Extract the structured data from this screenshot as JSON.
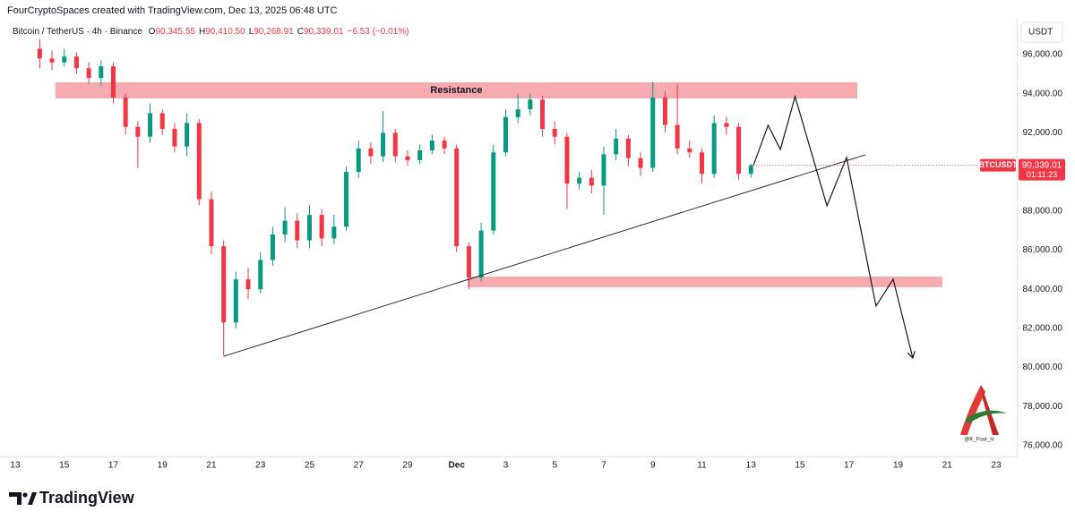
{
  "chart_data": {
    "type": "candlestick",
    "title": "FourCryptoSpaces created with TradingView.com, Dec 13, 2025 06:48 UTC",
    "legend": {
      "symbol": "Bitcoin / TetherUS · 4h · Binance",
      "ohlc": [
        {
          "key": "O",
          "value": "90,345.55"
        },
        {
          "key": "H",
          "value": "90,410.50"
        },
        {
          "key": "L",
          "value": "90,268.91"
        },
        {
          "key": "C",
          "value": "90,339.01"
        }
      ],
      "change": "−6.53 (−0.01%)"
    },
    "currency": "USDT",
    "price_tag": {
      "symbol": "BTCUSDT",
      "price": "90,339.01",
      "countdown": "01:11:23"
    },
    "brand": "TradingView",
    "watermark": "@K_Four_iv",
    "up_color": "#089981",
    "down_color": "#f23645",
    "candles": {
      "x": [
        1,
        1.5,
        2,
        2.5,
        3,
        3.5,
        4,
        4.5,
        5,
        5.5,
        6,
        6.5,
        7,
        7.5,
        8,
        8.5,
        9,
        9.5,
        10,
        10.5,
        11,
        11.5,
        12,
        12.5,
        13,
        13.5,
        14,
        14.5,
        15,
        15.5,
        16,
        16.5,
        17,
        17.5,
        18,
        18.5,
        19,
        19.5,
        20,
        20.5,
        21,
        21.5,
        22,
        22.5,
        23,
        23.5,
        24,
        24.5,
        25,
        25.5,
        26,
        26.5,
        27,
        27.5,
        28,
        28.5,
        29,
        29.5,
        30
      ],
      "open": [
        96300,
        95800,
        95600,
        95900,
        95300,
        94800,
        95400,
        93800,
        92300,
        91800,
        93000,
        92200,
        91300,
        92500,
        88600,
        86200,
        82300,
        84500,
        84000,
        85500,
        86800,
        87500,
        86500,
        87800,
        86600,
        87200,
        90000,
        91200,
        90800,
        92000,
        90800,
        90600,
        91100,
        91600,
        91200,
        86200,
        84600,
        87000,
        91000,
        92800,
        93200,
        93700,
        92200,
        91800,
        89400,
        89700,
        89300,
        90900,
        91700,
        90700,
        90200,
        93800,
        92400,
        91200,
        91000,
        89900,
        92500,
        92300,
        89900
      ],
      "high": [
        96800,
        96200,
        96300,
        96100,
        95600,
        95700,
        95600,
        94000,
        92600,
        93500,
        93200,
        92500,
        93000,
        92700,
        89000,
        86500,
        84900,
        85100,
        85900,
        87200,
        88200,
        87900,
        88300,
        88100,
        87800,
        90300,
        91600,
        91500,
        93100,
        92200,
        91100,
        91400,
        91900,
        91800,
        91400,
        86400,
        87400,
        91400,
        93200,
        94000,
        94000,
        93900,
        92600,
        92000,
        90000,
        90100,
        91300,
        92200,
        91900,
        91000,
        94600,
        94100,
        94500,
        91600,
        91200,
        92900,
        92800,
        92500,
        90410.5
      ],
      "low": [
        95300,
        95200,
        95400,
        95000,
        94500,
        94400,
        93500,
        91900,
        90200,
        91500,
        91900,
        91000,
        90800,
        88300,
        85800,
        80600,
        82000,
        83500,
        83800,
        85200,
        86400,
        86100,
        86100,
        86200,
        86300,
        87000,
        89700,
        90400,
        90500,
        90500,
        90300,
        90400,
        90900,
        90900,
        85900,
        84000,
        84400,
        86800,
        90800,
        92500,
        92900,
        91800,
        91400,
        88100,
        89100,
        88900,
        87800,
        90600,
        90300,
        89800,
        90000,
        92000,
        90900,
        90700,
        89400,
        89700,
        91900,
        89600,
        89700
      ],
      "close": [
        95800,
        95600,
        95900,
        95300,
        94800,
        95400,
        93800,
        92300,
        91800,
        93000,
        92200,
        91300,
        92500,
        88600,
        86200,
        82300,
        84500,
        84000,
        85500,
        86800,
        87500,
        86500,
        87800,
        86600,
        87200,
        90000,
        91200,
        90800,
        92000,
        90800,
        90600,
        91100,
        91600,
        91200,
        86200,
        84600,
        87000,
        91000,
        92800,
        93200,
        93700,
        92200,
        91800,
        89400,
        89700,
        89300,
        90900,
        91700,
        90700,
        90200,
        93800,
        92400,
        91200,
        91000,
        89900,
        92500,
        92300,
        89900,
        90339.01
      ]
    },
    "zones": [
      {
        "label": "Resistance",
        "color": "#f7a1a8",
        "x": [
          1.64,
          34.34
        ],
        "y": [
          93757,
          94581
        ]
      },
      {
        "color": "#f7a1a8",
        "x": [
          18.45,
          37.8
        ],
        "y": [
          84100,
          84650
        ]
      }
    ],
    "trendline": {
      "x": [
        8.51,
        34.67
      ],
      "y": [
        80577,
        90874
      ]
    },
    "projection": {
      "x": [
        30.1,
        30.7,
        31.2,
        31.8,
        33.1,
        33.9,
        35.1,
        35.8,
        36.6
      ],
      "y": [
        90325,
        92384,
        91150,
        93850,
        88266,
        90737,
        83140,
        84513,
        80486
      ]
    },
    "xlim": [
      -0.62,
      40.84
    ],
    "xticks": [
      {
        "value": 0,
        "label": "13"
      },
      {
        "value": 2,
        "label": "15"
      },
      {
        "value": 4,
        "label": "17"
      },
      {
        "value": 6,
        "label": "19"
      },
      {
        "value": 8,
        "label": "21"
      },
      {
        "value": 10,
        "label": "23"
      },
      {
        "value": 12,
        "label": "25"
      },
      {
        "value": 14,
        "label": "27"
      },
      {
        "value": 16,
        "label": "29"
      },
      {
        "value": 18,
        "label": "Dec"
      },
      {
        "value": 20,
        "label": "3"
      },
      {
        "value": 22,
        "label": "5"
      },
      {
        "value": 24,
        "label": "7"
      },
      {
        "value": 26,
        "label": "9"
      },
      {
        "value": 28,
        "label": "11"
      },
      {
        "value": 30,
        "label": "13"
      },
      {
        "value": 32,
        "label": "15"
      },
      {
        "value": 34,
        "label": "17"
      },
      {
        "value": 36,
        "label": "19"
      },
      {
        "value": 38,
        "label": "21"
      },
      {
        "value": 40,
        "label": "23"
      }
    ],
    "ylim": [
      75450,
      96730
    ],
    "yticks": [
      {
        "value": 76000,
        "label": "76,000.00"
      },
      {
        "value": 78000,
        "label": "78,000.00"
      },
      {
        "value": 80000,
        "label": "80,000.00"
      },
      {
        "value": 82000,
        "label": "82,000.00"
      },
      {
        "value": 84000,
        "label": "84,000.00"
      },
      {
        "value": 86000,
        "label": "86,000.00"
      },
      {
        "value": 88000,
        "label": "88,000.00"
      },
      {
        "value": 90000,
        "label": "90,000.00"
      },
      {
        "value": 92000,
        "label": "92,000.00"
      },
      {
        "value": 94000,
        "label": "94,000.00"
      },
      {
        "value": 96000,
        "label": "96,000.00"
      }
    ]
  }
}
